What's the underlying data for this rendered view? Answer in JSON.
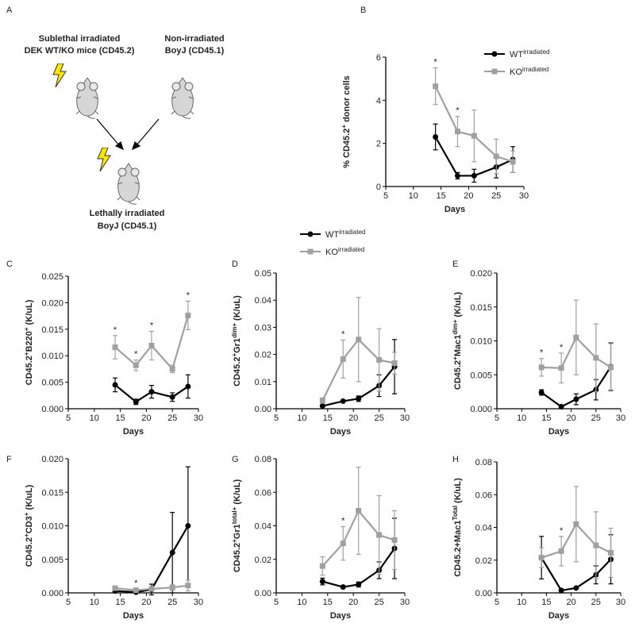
{
  "panel_a": {
    "label": "A",
    "donor": [
      "Sublethal irradiated",
      "DEK WT/KO mice (CD45.2)"
    ],
    "competitor": [
      "Non-irradiated",
      "BoyJ (CD45.1)"
    ],
    "recipient": [
      "Lethally irradiated",
      "BoyJ (CD45.1)"
    ]
  },
  "chart_data": [
    {
      "type": "line",
      "panel_label": "B",
      "xlabel": "Days",
      "ylabel": [
        {
          "text": "% CD45.2"
        },
        {
          "sup": "+"
        },
        {
          "text": " donor cells"
        }
      ],
      "x": [
        14,
        18,
        21,
        25,
        28
      ],
      "xlim": [
        5,
        30
      ],
      "xticks": [
        5,
        10,
        15,
        20,
        25,
        30
      ],
      "ylim": [
        0,
        6
      ],
      "yticks": [
        0,
        2,
        4,
        6
      ],
      "legend": "upper right",
      "series": [
        {
          "name": "WT",
          "name_sup": "irradiated",
          "color": "#000000",
          "marker": "circle",
          "values": [
            2.3,
            0.5,
            0.5,
            0.9,
            1.25
          ],
          "errors": [
            0.6,
            0.15,
            0.3,
            0.5,
            0.6
          ]
        },
        {
          "name": "KO",
          "name_sup": "irradiated",
          "color": "#a0a0a0",
          "marker": "square",
          "values": [
            4.65,
            2.55,
            2.35,
            1.4,
            1.15
          ],
          "errors": [
            0.85,
            0.7,
            1.2,
            0.8,
            0.5
          ]
        }
      ],
      "annotations": [
        {
          "text": "*",
          "x": 14
        },
        {
          "text": "*",
          "x": 18
        }
      ]
    },
    {
      "type": "line",
      "panel_label": "C",
      "xlabel": "Days",
      "ylabel": [
        {
          "text": "CD45.2"
        },
        {
          "sup": "+"
        },
        {
          "text": "B220"
        },
        {
          "sup": "+"
        },
        {
          "text": " (K/uL)"
        }
      ],
      "x": [
        14,
        18,
        21,
        25,
        28
      ],
      "xlim": [
        5,
        30
      ],
      "xticks": [
        5,
        10,
        15,
        20,
        25,
        30
      ],
      "ylim": [
        0,
        0.025
      ],
      "yticks": [
        {
          "value": 0,
          "label": "0.000"
        },
        0.005,
        {
          "value": 0.01,
          "label": "0.010"
        },
        0.015,
        {
          "value": 0.02,
          "label": "0.020"
        },
        0.025
      ],
      "legend": "above",
      "series": [
        {
          "name": "WT",
          "name_sup": "irradiated",
          "color": "#000000",
          "marker": "circle",
          "values": [
            0.0045,
            0.0013,
            0.0032,
            0.0022,
            0.0042
          ],
          "errors": [
            0.0013,
            0.0005,
            0.0012,
            0.0008,
            0.0022
          ]
        },
        {
          "name": "KO",
          "name_sup": "irradiated",
          "color": "#a0a0a0",
          "marker": "square",
          "values": [
            0.0116,
            0.0082,
            0.0119,
            0.0075,
            0.0176
          ],
          "errors": [
            0.0022,
            0.001,
            0.0027,
            0.0007,
            0.0027
          ]
        }
      ],
      "annotations": [
        {
          "text": "*",
          "x": 14
        },
        {
          "text": "*",
          "x": 18
        },
        {
          "text": "*",
          "x": 21
        },
        {
          "text": "*",
          "x": 28
        }
      ]
    },
    {
      "type": "line",
      "panel_label": "D",
      "xlabel": "Days",
      "ylabel": [
        {
          "text": "CD45.2"
        },
        {
          "sup": "+"
        },
        {
          "text": "Gr1"
        },
        {
          "sup": "dim+"
        },
        {
          "text": " (K/uL)"
        }
      ],
      "x": [
        14,
        18,
        21,
        25,
        28
      ],
      "xlim": [
        5,
        30
      ],
      "xticks": [
        5,
        10,
        15,
        20,
        25,
        30
      ],
      "ylim": [
        0,
        0.05
      ],
      "yticks": [
        {
          "value": 0,
          "label": "0.00"
        },
        0.01,
        0.02,
        0.03,
        0.04,
        0.05
      ],
      "series": [
        {
          "color": "#000000",
          "marker": "circle",
          "values": [
            0.001,
            0.0028,
            0.0037,
            0.0085,
            0.0155
          ],
          "errors": [
            0.0003,
            0.0003,
            0.001,
            0.004,
            0.01
          ]
        },
        {
          "color": "#a0a0a0",
          "marker": "square",
          "values": [
            0.003,
            0.0183,
            0.0255,
            0.018,
            0.0168
          ],
          "errors": [
            0.001,
            0.007,
            0.0155,
            0.0115,
            0.004
          ]
        }
      ],
      "annotations": [
        {
          "text": "*",
          "x": 18
        }
      ]
    },
    {
      "type": "line",
      "panel_label": "E",
      "xlabel": "Days",
      "ylabel": [
        {
          "text": "CD45.2"
        },
        {
          "sup": "+"
        },
        {
          "text": "Mac1"
        },
        {
          "sup": "dim+"
        },
        {
          "text": " (K/uL)"
        }
      ],
      "x": [
        14,
        18,
        21,
        25,
        28
      ],
      "xlim": [
        5,
        30
      ],
      "xticks": [
        5,
        10,
        15,
        20,
        25,
        30
      ],
      "ylim": [
        0,
        0.02
      ],
      "yticks": [
        {
          "value": 0,
          "label": "0.000"
        },
        0.005,
        {
          "value": 0.01,
          "label": "0.010"
        },
        0.015,
        {
          "value": 0.02,
          "label": "0.020"
        }
      ],
      "series": [
        {
          "color": "#000000",
          "marker": "circle",
          "values": [
            0.0024,
            0.0003,
            0.0014,
            0.0028,
            0.0062
          ],
          "errors": [
            0.0004,
            0.0002,
            0.0008,
            0.0015,
            0.0035
          ]
        },
        {
          "color": "#a0a0a0",
          "marker": "square",
          "values": [
            0.0061,
            0.006,
            0.0105,
            0.0075,
            0.0061
          ],
          "errors": [
            0.0013,
            0.0022,
            0.0055,
            0.005,
            0.0035
          ]
        }
      ],
      "annotations": [
        {
          "text": "*",
          "x": 14
        },
        {
          "text": "*",
          "x": 18
        }
      ]
    },
    {
      "type": "line",
      "panel_label": "F",
      "xlabel": "Days",
      "ylabel": [
        {
          "text": "CD45.2"
        },
        {
          "sup": "+"
        },
        {
          "text": "CD3"
        },
        {
          "sup": "+"
        },
        {
          "text": " (K/uL)"
        }
      ],
      "x": [
        14,
        18,
        21,
        25,
        28
      ],
      "xlim": [
        5,
        30
      ],
      "xticks": [
        5,
        10,
        15,
        20,
        25,
        30
      ],
      "ylim": [
        0,
        0.02
      ],
      "yticks": [
        {
          "value": 0,
          "label": "0.000"
        },
        0.005,
        {
          "value": 0.01,
          "label": "0.010"
        },
        0.015,
        {
          "value": 0.02,
          "label": "0.020"
        }
      ],
      "series": [
        {
          "color": "#000000",
          "marker": "circle",
          "values": [
            0.0003,
            0.0001,
            0.0005,
            0.006,
            0.01
          ],
          "errors": [
            0.0002,
            0.0001,
            0.0008,
            0.006,
            0.0088
          ]
        },
        {
          "color": "#a0a0a0",
          "marker": "square",
          "values": [
            0.0007,
            0.0004,
            0.0006,
            0.0008,
            0.0011
          ],
          "errors": [
            0.0003,
            0.0002,
            0.0003,
            0.0004,
            0.0008
          ]
        }
      ],
      "annotations": [
        {
          "text": "*",
          "x": 18
        }
      ]
    },
    {
      "type": "line",
      "panel_label": "G",
      "xlabel": "Days",
      "ylabel": [
        {
          "text": "CD45.2"
        },
        {
          "sup": "+"
        },
        {
          "text": "Gr1"
        },
        {
          "sup": "total+"
        },
        {
          "text": " (K/uL)"
        }
      ],
      "x": [
        14,
        18,
        21,
        25,
        28
      ],
      "xlim": [
        5,
        30
      ],
      "xticks": [
        5,
        10,
        15,
        20,
        25,
        30
      ],
      "ylim": [
        0,
        0.08
      ],
      "yticks": [
        {
          "value": 0,
          "label": "0.00"
        },
        0.02,
        0.04,
        0.06,
        0.08
      ],
      "series": [
        {
          "color": "#000000",
          "marker": "circle",
          "values": [
            0.0068,
            0.0035,
            0.005,
            0.0135,
            0.0265
          ],
          "errors": [
            0.002,
            0.0005,
            0.0015,
            0.005,
            0.018
          ]
        },
        {
          "color": "#a0a0a0",
          "marker": "square",
          "values": [
            0.016,
            0.0295,
            0.049,
            0.0345,
            0.0315
          ],
          "errors": [
            0.0055,
            0.01,
            0.026,
            0.0235,
            0.0175
          ]
        }
      ],
      "annotations": [
        {
          "text": "*",
          "x": 18
        }
      ]
    },
    {
      "type": "line",
      "panel_label": "H",
      "xlabel": "Days",
      "ylabel": [
        {
          "text": "CD45.2+Mac1"
        },
        {
          "sup": "Total"
        },
        {
          "text": " (K/uL)"
        }
      ],
      "x": [
        14,
        18,
        21,
        25,
        28
      ],
      "xlim": [
        5,
        30
      ],
      "xticks": [
        5,
        10,
        15,
        20,
        25,
        30
      ],
      "ylim": [
        0,
        0.08
      ],
      "yticks": [
        {
          "value": 0,
          "label": "0.00"
        },
        0.02,
        0.04,
        0.06,
        0.08
      ],
      "series": [
        {
          "color": "#000000",
          "marker": "circle",
          "values": [
            0.0215,
            0.0015,
            0.003,
            0.011,
            0.0205
          ],
          "errors": [
            0.013,
            0.0005,
            0.0005,
            0.0055,
            0.015
          ]
        },
        {
          "color": "#a0a0a0",
          "marker": "square",
          "values": [
            0.0215,
            0.0255,
            0.042,
            0.029,
            0.0245
          ],
          "errors": [
            0.006,
            0.009,
            0.023,
            0.0205,
            0.015
          ]
        }
      ],
      "annotations": [
        {
          "text": "*",
          "x": 18
        }
      ]
    }
  ]
}
